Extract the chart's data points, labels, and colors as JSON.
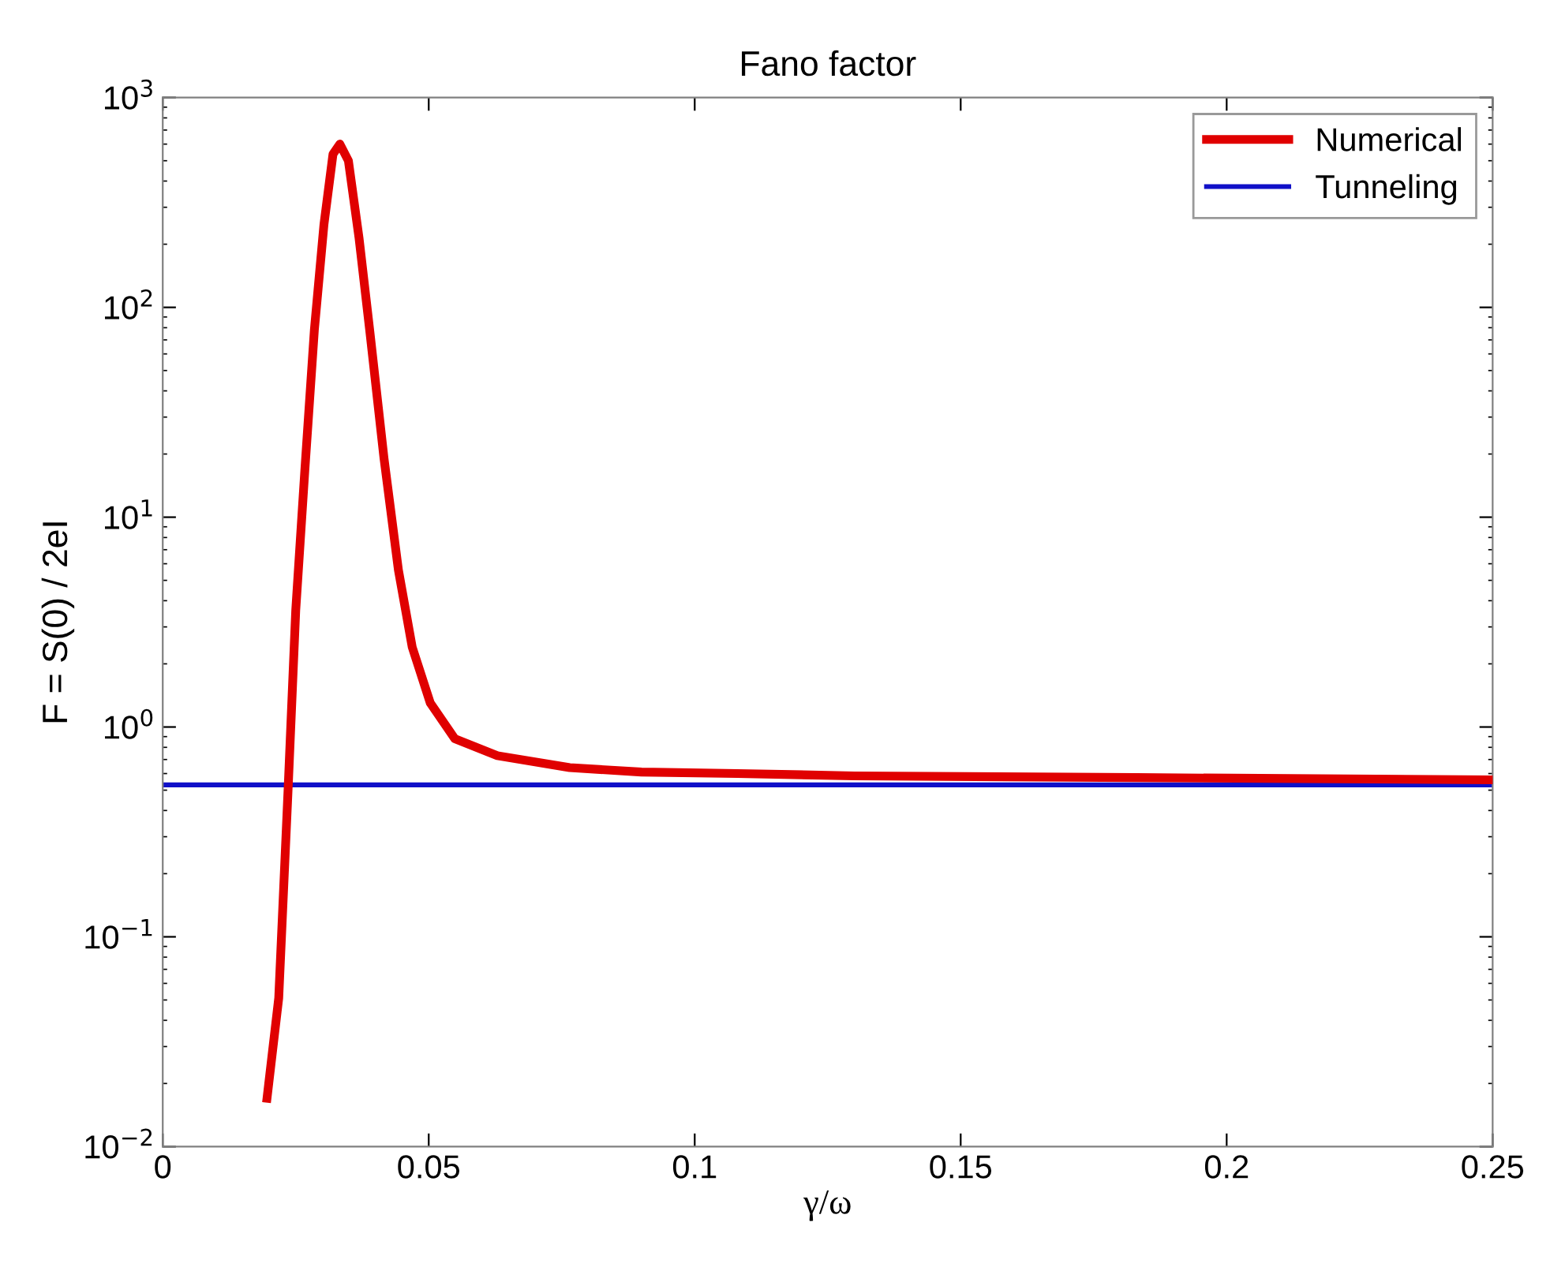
{
  "chart_data": {
    "type": "line",
    "title": "Fano factor",
    "xlabel": "γ/ω",
    "ylabel": "F = S(0) / 2eI",
    "log": "y",
    "legend": "top right",
    "grid": false,
    "xlim": [
      0,
      0.25
    ],
    "xticks": [
      0,
      0.05,
      0.1,
      0.15,
      0.2,
      0.25
    ],
    "ylim": [
      0.01,
      1000
    ],
    "yticks": [
      {
        "value": 0.01,
        "label": "10$^{−2}$"
      },
      {
        "value": 0.1,
        "label": "10$^{−1}$"
      },
      {
        "value": 1,
        "label": "10$^{0}$"
      },
      {
        "value": 10,
        "label": "10$^{1}$"
      },
      {
        "value": 100,
        "label": "10$^{2}$"
      },
      {
        "value": 1000,
        "label": "10$^{3}$"
      }
    ],
    "series": [
      {
        "name": "Numerical",
        "color": "#e00000",
        "x": [
          0.0196,
          0.0218,
          0.0236,
          0.025,
          0.0267,
          0.0285,
          0.0303,
          0.032,
          0.0333,
          0.0349,
          0.0369,
          0.0389,
          0.0416,
          0.0443,
          0.0469,
          0.0503,
          0.0549,
          0.0629,
          0.0765,
          0.09,
          0.108,
          0.13,
          0.183,
          0.25
        ],
        "values": [
          0.017,
          0.051,
          0.53,
          3.6,
          16.6,
          78,
          248,
          537,
          600,
          500,
          214,
          78,
          19,
          5.6,
          2.4,
          1.3,
          0.88,
          0.73,
          0.64,
          0.61,
          0.6,
          0.585,
          0.574,
          0.56
        ]
      },
      {
        "name": "Tunneling",
        "color": "#1010c8",
        "x": [
          0,
          0.25
        ],
        "values": [
          0.53,
          0.53
        ]
      }
    ]
  }
}
